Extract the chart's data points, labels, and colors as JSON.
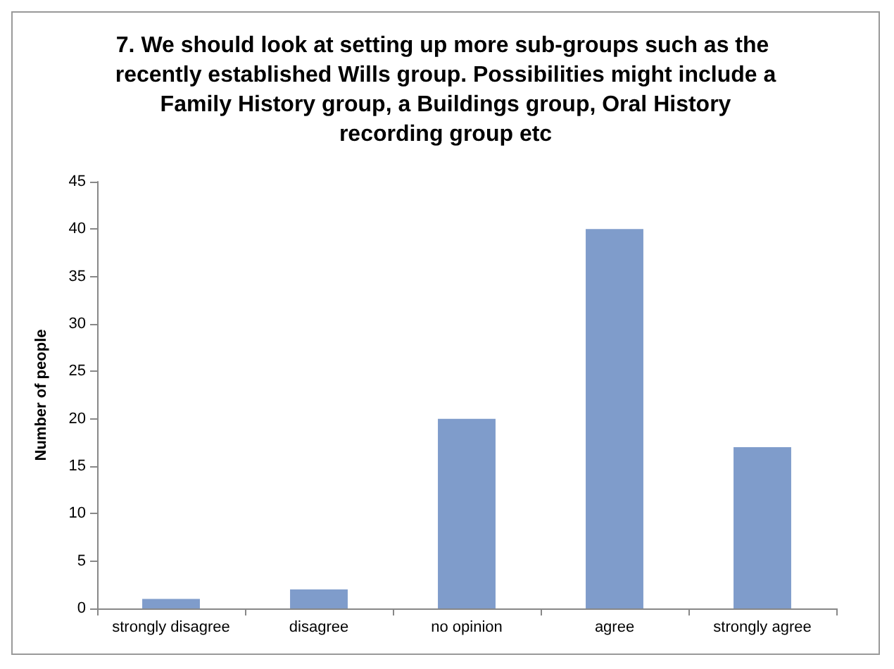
{
  "chart_data": {
    "type": "bar",
    "title": "7. We should look at setting up more sub-groups such as the recently established Wills group. Possibilities might include a Family History group, a Buildings group, Oral History recording group etc",
    "ylabel": "Number of people",
    "categories": [
      "strongly disagree",
      "disagree",
      "no opinion",
      "agree",
      "strongly agree"
    ],
    "values": [
      1,
      2,
      20,
      40,
      17
    ],
    "color": "#7f9ccb",
    "ylim": [
      0,
      45
    ],
    "yticks": [
      0,
      5,
      10,
      15,
      20,
      25,
      30,
      35,
      40,
      45
    ],
    "grid": false
  }
}
